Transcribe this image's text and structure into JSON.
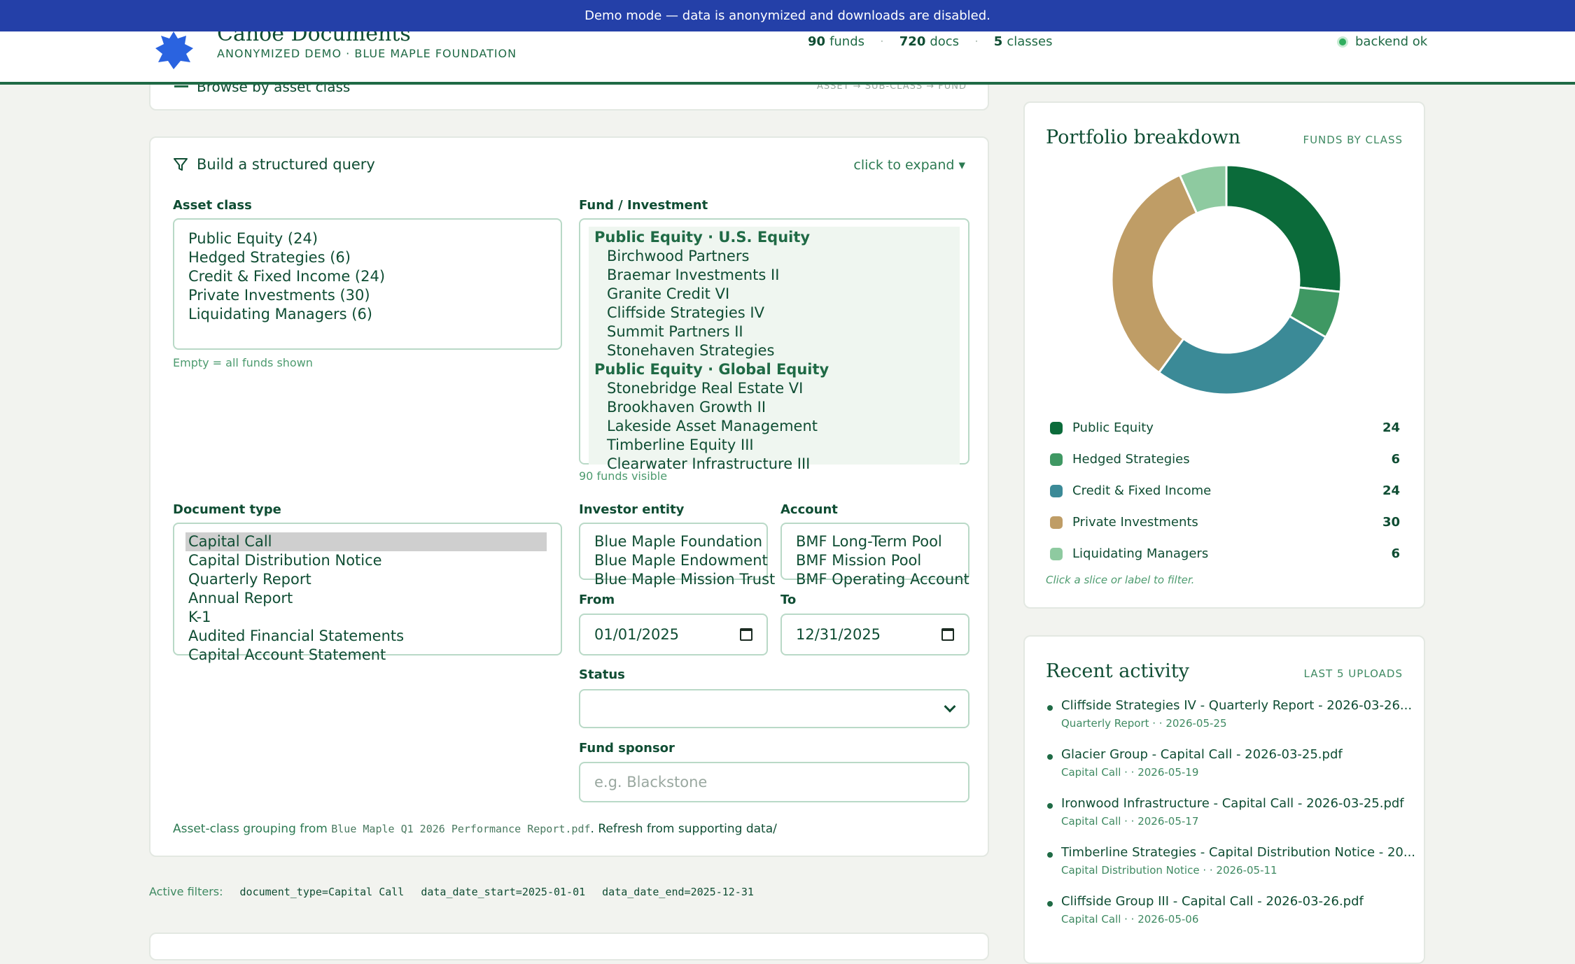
{
  "banner": "Demo mode — data is anonymized and downloads are disabled.",
  "header": {
    "title": "Canoe Documents",
    "subtitle": "ANONYMIZED DEMO · BLUE MAPLE FOUNDATION",
    "stats": [
      {
        "num": "90",
        "label": "funds"
      },
      {
        "num": "720",
        "label": "docs"
      },
      {
        "num": "5",
        "label": "classes"
      }
    ],
    "backend": "backend ok"
  },
  "browse": {
    "title": "Browse by asset class",
    "right": "ASSET → SUB-CLASS → FUND"
  },
  "query": {
    "title": "Build a structured query",
    "expand": "click to expand ▾",
    "asset_class": {
      "label": "Asset class",
      "options": [
        "Public Equity (24)",
        "Hedged Strategies (6)",
        "Credit & Fixed Income (24)",
        "Private Investments (30)",
        "Liquidating Managers (6)"
      ],
      "hint": "Empty = all funds shown"
    },
    "fund": {
      "label": "Fund / Investment",
      "groups": [
        {
          "name": "Public Equity · U.S. Equity",
          "items": [
            "Birchwood Partners",
            "Braemar Investments II",
            "Granite Credit VI",
            "Cliffside Strategies IV",
            "Summit Partners II",
            "Stonehaven Strategies"
          ]
        },
        {
          "name": "Public Equity · Global Equity",
          "items": [
            "Stonebridge Real Estate VI",
            "Brookhaven Growth II",
            "Lakeside Asset Management",
            "Timberline Equity III",
            "Clearwater Infrastructure III"
          ]
        }
      ],
      "hint": "90 funds visible"
    },
    "doc_type": {
      "label": "Document type",
      "options": [
        "Capital Call",
        "Capital Distribution Notice",
        "Quarterly Report",
        "Annual Report",
        "K-1",
        "Audited Financial Statements",
        "Capital Account Statement"
      ],
      "selected": "Capital Call"
    },
    "investor": {
      "label": "Investor entity",
      "options": [
        "Blue Maple Foundation",
        "Blue Maple Endowment",
        "Blue Maple Mission Trust"
      ]
    },
    "account": {
      "label": "Account",
      "options": [
        "BMF Long-Term Pool",
        "BMF Mission Pool",
        "BMF Operating Account"
      ]
    },
    "from": {
      "label": "From",
      "value": "01/01/2025"
    },
    "to": {
      "label": "To",
      "value": "12/31/2025"
    },
    "status": {
      "label": "Status",
      "value": ""
    },
    "sponsor": {
      "label": "Fund sponsor",
      "placeholder": "e.g. Blackstone"
    },
    "footnote_pre": "Asset-class grouping from ",
    "footnote_file": "Blue Maple Q1 2026 Performance Report.pdf",
    "footnote_post": ". Refresh from supporting data/"
  },
  "active_filters": {
    "label": "Active filters:",
    "chips": [
      "document_type=Capital Call",
      "data_date_start=2025-01-01",
      "data_date_end=2025-12-31"
    ]
  },
  "portfolio": {
    "title": "Portfolio breakdown",
    "tag": "FUNDS BY CLASS",
    "hint": "Click a slice or label to filter.",
    "colors": [
      "#0b6b3a",
      "#3f9863",
      "#3b8a97",
      "#bf9d66",
      "#8ecaa0"
    ]
  },
  "chart_data": {
    "type": "pie",
    "categories": [
      "Public Equity",
      "Hedged Strategies",
      "Credit & Fixed Income",
      "Private Investments",
      "Liquidating Managers"
    ],
    "values": [
      24,
      6,
      24,
      30,
      6
    ]
  },
  "activity": {
    "title": "Recent activity",
    "tag": "LAST 5 UPLOADS",
    "items": [
      {
        "title": "Cliffside Strategies IV - Quarterly Report - 2026-03-26...",
        "meta": "Quarterly Report · · 2026-05-25"
      },
      {
        "title": "Glacier Group - Capital Call - 2026-03-25.pdf",
        "meta": "Capital Call · · 2026-05-19"
      },
      {
        "title": "Ironwood Infrastructure - Capital Call - 2026-03-25.pdf",
        "meta": "Capital Call · · 2026-05-17"
      },
      {
        "title": "Timberline Strategies - Capital Distribution Notice - 20...",
        "meta": "Capital Distribution Notice · · 2026-05-11"
      },
      {
        "title": "Cliffside Group III - Capital Call - 2026-03-26.pdf",
        "meta": "Capital Call · · 2026-05-06"
      }
    ]
  }
}
